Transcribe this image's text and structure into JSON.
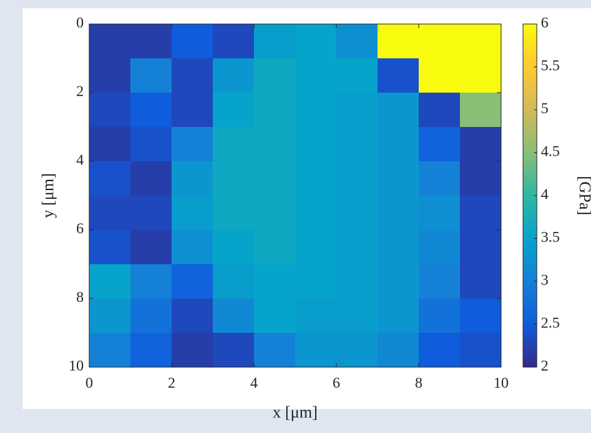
{
  "chart_data": {
    "type": "heatmap",
    "xlabel": "x [μm]",
    "ylabel": "y [μm]",
    "colorbar_label": "[GPa]",
    "colormap": "parula",
    "y_reversed": true,
    "xlim": [
      0,
      10
    ],
    "ylim": [
      0,
      10
    ],
    "xticks": [
      0,
      2,
      4,
      6,
      8,
      10
    ],
    "yticks": [
      0,
      2,
      4,
      6,
      8,
      10
    ],
    "clim": [
      2,
      6
    ],
    "cticks": [
      2,
      2.5,
      3,
      3.5,
      4,
      4.5,
      5,
      5.5,
      6
    ],
    "z": [
      [
        2.2,
        2.2,
        2.5,
        2.3,
        3.4,
        3.5,
        3.2,
        6,
        6,
        6
      ],
      [
        2.2,
        3.0,
        2.3,
        3.3,
        3.6,
        3.5,
        3.5,
        2.4,
        6,
        6
      ],
      [
        2.3,
        2.5,
        2.3,
        3.5,
        3.6,
        3.5,
        3.4,
        3.3,
        2.3,
        4.5
      ],
      [
        2.2,
        2.4,
        3.0,
        3.6,
        3.6,
        3.5,
        3.4,
        3.3,
        2.6,
        2.2
      ],
      [
        2.4,
        2.2,
        3.3,
        3.6,
        3.6,
        3.5,
        3.4,
        3.3,
        3.0,
        2.2
      ],
      [
        2.3,
        2.3,
        3.4,
        3.6,
        3.6,
        3.5,
        3.4,
        3.3,
        3.2,
        2.3
      ],
      [
        2.4,
        2.2,
        3.2,
        3.5,
        3.6,
        3.5,
        3.4,
        3.3,
        3.1,
        2.3
      ],
      [
        3.5,
        3.0,
        2.6,
        3.4,
        3.5,
        3.5,
        3.4,
        3.3,
        3.0,
        2.3
      ],
      [
        3.3,
        2.8,
        2.3,
        3.1,
        3.5,
        3.4,
        3.4,
        3.3,
        2.8,
        2.5
      ],
      [
        3.0,
        2.6,
        2.2,
        2.3,
        3.0,
        3.3,
        3.3,
        3.1,
        2.5,
        2.4
      ]
    ]
  }
}
